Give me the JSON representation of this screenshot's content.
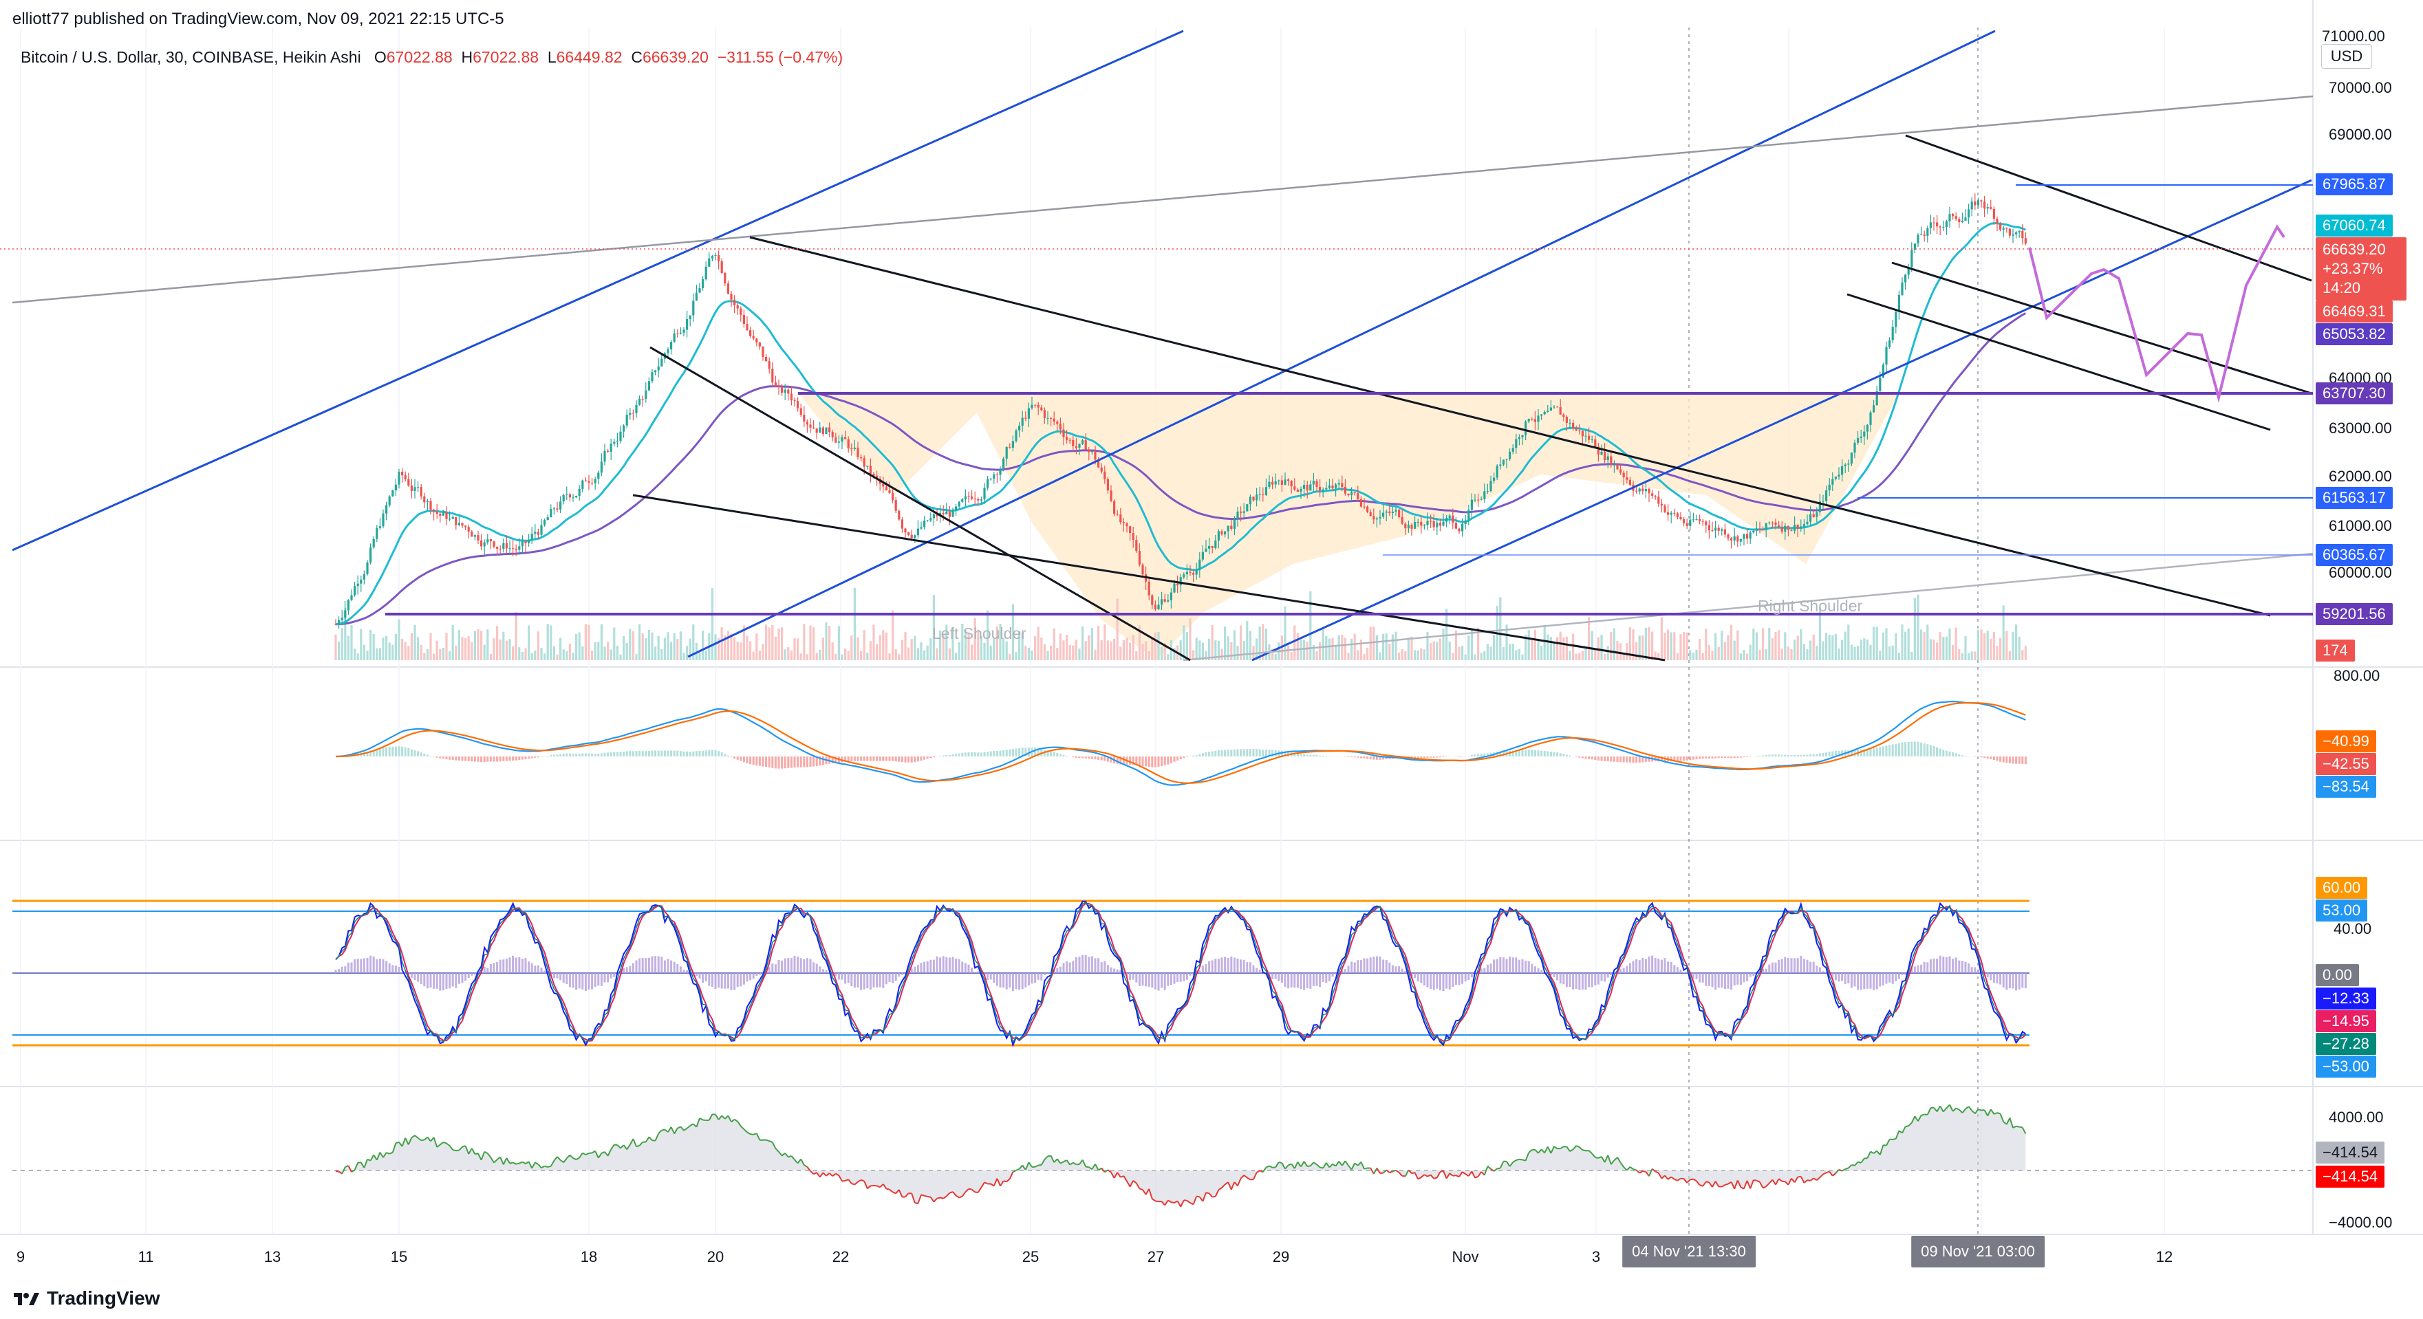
{
  "header": {
    "published": "elliott77 published on TradingView.com, Nov 09, 2021 22:15 UTC-5",
    "symbol": "Bitcoin / U.S. Dollar, 30, COINBASE, Heikin Ashi",
    "o_label": "O",
    "o_value": "67022.88",
    "h_label": "H",
    "h_value": "67022.88",
    "l_label": "L",
    "l_value": "66449.82",
    "c_label": "C",
    "c_value": "66639.20",
    "change": "−311.55 (−0.47%)"
  },
  "currency_button": "USD",
  "brand": "TradingView",
  "pattern_labels": {
    "left_shoulder": "Left Shoulder",
    "right_shoulder": "Right Shoulder"
  },
  "colors": {
    "up": "#26a69a",
    "down": "#ef5350",
    "ema_fast": "#1fbcd2",
    "ema_slow": "#7e57c2",
    "trend_blue": "#1e4fd8",
    "channel_black": "#131722",
    "neckline": "#673ab7",
    "projection": "#c36bdb",
    "zone_fill": "#ffe9c9"
  },
  "price_axis": {
    "ticks": [
      "70000.00",
      "69000.00",
      "64000.00",
      "63000.00",
      "62000.00",
      "61000.00",
      "60000.00"
    ],
    "top_partial": "71000.00",
    "labels": [
      {
        "text": "67965.87",
        "bg": "#2962ff",
        "fg": "#ffffff"
      },
      {
        "text": "67060.74",
        "bg": "#00bcd4",
        "fg": "#ffffff"
      },
      {
        "text": "66639.20",
        "text2": "+23.37%",
        "text3": "14:20",
        "bg": "#ef5350",
        "fg": "#ffffff"
      },
      {
        "text": "66469.31",
        "bg": "#ef5350",
        "fg": "#ffffff"
      },
      {
        "text": "65053.82",
        "bg": "#5b3cc4",
        "fg": "#ffffff"
      },
      {
        "text": "63707.30",
        "bg": "#673ab7",
        "fg": "#ffffff"
      },
      {
        "text": "61563.17",
        "bg": "#2962ff",
        "fg": "#ffffff"
      },
      {
        "text": "60365.67",
        "bg": "#2962ff",
        "fg": "#ffffff"
      },
      {
        "text": "59201.56",
        "bg": "#673ab7",
        "fg": "#ffffff"
      },
      {
        "text": "174",
        "bg": "#ef5350",
        "fg": "#ffffff"
      }
    ]
  },
  "macd_axis": {
    "top": "800.00",
    "labels": [
      {
        "text": "−40.99",
        "bg": "#ff6d00"
      },
      {
        "text": "−42.55",
        "bg": "#ef5350"
      },
      {
        "text": "−83.54",
        "bg": "#2196f3"
      }
    ]
  },
  "stoch_axis": {
    "tick": "40.00",
    "labels": [
      {
        "text": "60.00",
        "bg": "#ff9800"
      },
      {
        "text": "53.00",
        "bg": "#2196f3"
      },
      {
        "text": "0.00",
        "bg": "#787b86"
      },
      {
        "text": "−12.33",
        "bg": "#1a1aff"
      },
      {
        "text": "−14.95",
        "bg": "#e91e63"
      },
      {
        "text": "−27.28",
        "bg": "#00897b"
      },
      {
        "text": "−53.00",
        "bg": "#2196f3"
      }
    ]
  },
  "osc_axis": {
    "top": "4000.00",
    "bottom": "−4000.00",
    "labels": [
      {
        "text": "−414.54",
        "bg": "#b2b5be"
      },
      {
        "text": "−414.54",
        "bg": "#ff0000"
      }
    ]
  },
  "time_axis": {
    "labels": [
      "9",
      "11",
      "13",
      "15",
      "18",
      "20",
      "22",
      "25",
      "27",
      "29",
      "Nov",
      "3",
      "12"
    ],
    "highlight": [
      "04 Nov '21   13:30",
      "09 Nov '21   03:00"
    ]
  },
  "chart_data": {
    "type": "candlestick",
    "timeframe": "30",
    "ylim": [
      58700,
      71100
    ],
    "x_dates": [
      "Oct 9",
      "Oct 11",
      "Oct 13",
      "Oct 15",
      "Oct 18",
      "Oct 20",
      "Oct 22",
      "Oct 25",
      "Oct 27",
      "Oct 29",
      "Nov 1",
      "Nov 3",
      "Nov 12"
    ],
    "close_path": [
      [
        "Oct 14",
        58900
      ],
      [
        "Oct 15",
        61900
      ],
      [
        "Oct 16",
        60900
      ],
      [
        "Oct 17",
        60500
      ],
      [
        "Oct 18",
        61900
      ],
      [
        "Oct 19",
        63900
      ],
      [
        "Oct 20",
        66600
      ],
      [
        "Oct 21",
        63700
      ],
      [
        "Oct 22",
        62900
      ],
      [
        "Oct 23",
        60900
      ],
      [
        "Oct 24",
        61200
      ],
      [
        "Oct 25",
        63300
      ],
      [
        "Oct 26",
        62400
      ],
      [
        "Oct 27",
        59300
      ],
      [
        "Oct 28",
        60700
      ],
      [
        "Oct 29",
        61900
      ],
      [
        "Oct 30",
        61600
      ],
      [
        "Oct 31",
        61100
      ],
      [
        "Nov 1",
        61000
      ],
      [
        "Nov 2",
        63400
      ],
      [
        "Nov 3",
        62600
      ],
      [
        "Nov 4",
        61000
      ],
      [
        "Nov 5",
        60800
      ],
      [
        "Nov 6",
        61200
      ],
      [
        "Nov 7",
        63300
      ],
      [
        "Nov 8",
        66800
      ],
      [
        "Nov 9",
        67600
      ],
      [
        "Nov 9 late",
        66639
      ]
    ],
    "levels": [
      67965.87,
      67060.74,
      66639.2,
      66469.31,
      65053.82,
      63707.3,
      61563.17,
      60365.67,
      59201.56
    ],
    "indicators": [
      "MACD",
      "Stochastic RSI",
      "Oscillator"
    ],
    "macd_range": [
      -800,
      800
    ],
    "stoch_bands": [
      60,
      53,
      -53
    ],
    "osc_range": [
      -4000,
      4000
    ]
  }
}
